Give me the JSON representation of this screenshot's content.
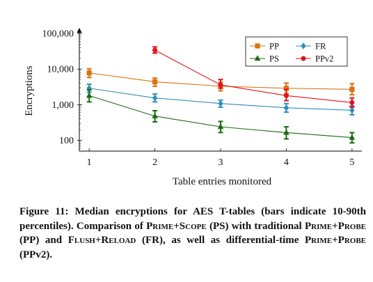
{
  "chart_data": {
    "type": "line",
    "title": "",
    "xlabel": "Table entries monitored",
    "ylabel": "Encryptions",
    "yscale": "log",
    "x": [
      1,
      2,
      3,
      4,
      5
    ],
    "xlim": [
      0.85,
      5.15
    ],
    "ylim": [
      50,
      120000
    ],
    "x_ticks": [
      "1",
      "2",
      "3",
      "4",
      "5"
    ],
    "y_ticks": [
      {
        "value": 100,
        "label": "100"
      },
      {
        "value": 1000,
        "label": "1,000"
      },
      {
        "value": 10000,
        "label": "10,000"
      },
      {
        "value": 100000,
        "label": "100,000"
      }
    ],
    "legend_position": "top-right",
    "grid": false,
    "series": [
      {
        "name": "PP",
        "color": "#d9730e",
        "marker": "square",
        "x": [
          1,
          2,
          3,
          4,
          5
        ],
        "values": [
          7800,
          4400,
          3300,
          2900,
          2700
        ],
        "lower": [
          5800,
          3300,
          2450,
          2050,
          1900
        ],
        "upper": [
          10200,
          5600,
          4300,
          4050,
          3900
        ]
      },
      {
        "name": "FR",
        "color": "#2f8fb8",
        "marker": "diamond",
        "x": [
          1,
          2,
          3,
          4,
          5
        ],
        "values": [
          2900,
          1550,
          1080,
          820,
          700
        ],
        "lower": [
          2250,
          1200,
          850,
          620,
          520
        ],
        "upper": [
          3750,
          2000,
          1350,
          1080,
          930
        ]
      },
      {
        "name": "PS",
        "color": "#1a6b12",
        "marker": "triangle",
        "x": [
          1,
          2,
          3,
          4,
          5
        ],
        "values": [
          1800,
          480,
          240,
          165,
          120
        ],
        "lower": [
          1200,
          330,
          165,
          110,
          85
        ],
        "upper": [
          2600,
          680,
          340,
          240,
          165
        ]
      },
      {
        "name": "PPv2",
        "color": "#e0131d",
        "marker": "circle",
        "x": [
          2,
          3,
          4,
          5
        ],
        "values": [
          34000,
          3600,
          1800,
          1150
        ],
        "lower": [
          28000,
          2900,
          1300,
          850
        ],
        "upper": [
          42000,
          5100,
          2700,
          1550
        ]
      }
    ]
  },
  "caption": {
    "label": "Figure 11:",
    "segments": [
      {
        "text": " Median encryptions for AES T-tables (bars in­dicate 10-90th percentiles). Comparison of ",
        "sc": false
      },
      {
        "text": "Prime+Scope",
        "sc": true
      },
      {
        "text": " (PS) with traditional ",
        "sc": false
      },
      {
        "text": "Prime+Probe",
        "sc": true
      },
      {
        "text": " (PP) and ",
        "sc": false
      },
      {
        "text": "Flush+Reload",
        "sc": true
      },
      {
        "text": " (FR), as well as differential-time ",
        "sc": false
      },
      {
        "text": "Prime+Probe",
        "sc": true
      },
      {
        "text": " (PPv2).",
        "sc": false
      }
    ]
  }
}
